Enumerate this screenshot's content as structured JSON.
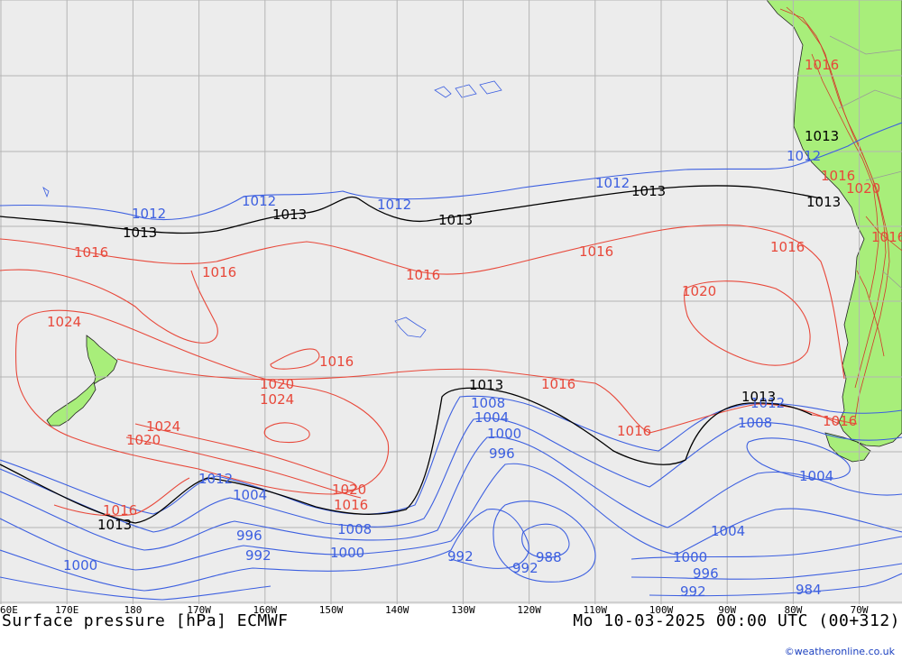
{
  "colors": {
    "ocean": "#ececec",
    "land": "#a8ee7a",
    "grid": "#b4b4b4",
    "low_isobar": "#3c5fe0",
    "high_isobar": "#e8483a",
    "reference_isobar": "#000000",
    "terrain": "#d23a2a"
  },
  "footer": {
    "title_left": "Surface pressure [hPa] ECMWF",
    "title_right": "Mo 10-03-2025 00:00 UTC (00+312)",
    "credit": "©weatheronline.co.uk"
  },
  "longitudes": [
    "60E",
    "170E",
    "180",
    "170W",
    "160W",
    "150W",
    "140W",
    "130W",
    "120W",
    "110W",
    "100W",
    "90W",
    "80W",
    "70W"
  ],
  "isobar_labels": {
    "blue": [
      "1012",
      "1012",
      "1012",
      "1012",
      "1012",
      "1012",
      "1012",
      "1008",
      "1004",
      "1000",
      "996",
      "1008",
      "1004",
      "1004",
      "1004",
      "996",
      "992",
      "1000",
      "1008",
      "1000",
      "992",
      "988",
      "992",
      "1000",
      "996",
      "992",
      "984"
    ],
    "black": [
      "1013",
      "1013",
      "1013",
      "1013",
      "1013",
      "1013",
      "1013",
      "1013",
      "1013"
    ],
    "red": [
      "1016",
      "1016",
      "1016",
      "1016",
      "1016",
      "1024",
      "1020",
      "1016",
      "1020",
      "1024",
      "1024",
      "1020",
      "1016",
      "1016",
      "1016",
      "1016",
      "1020",
      "1016",
      "1016",
      "1016",
      "1020",
      "1016"
    ]
  }
}
